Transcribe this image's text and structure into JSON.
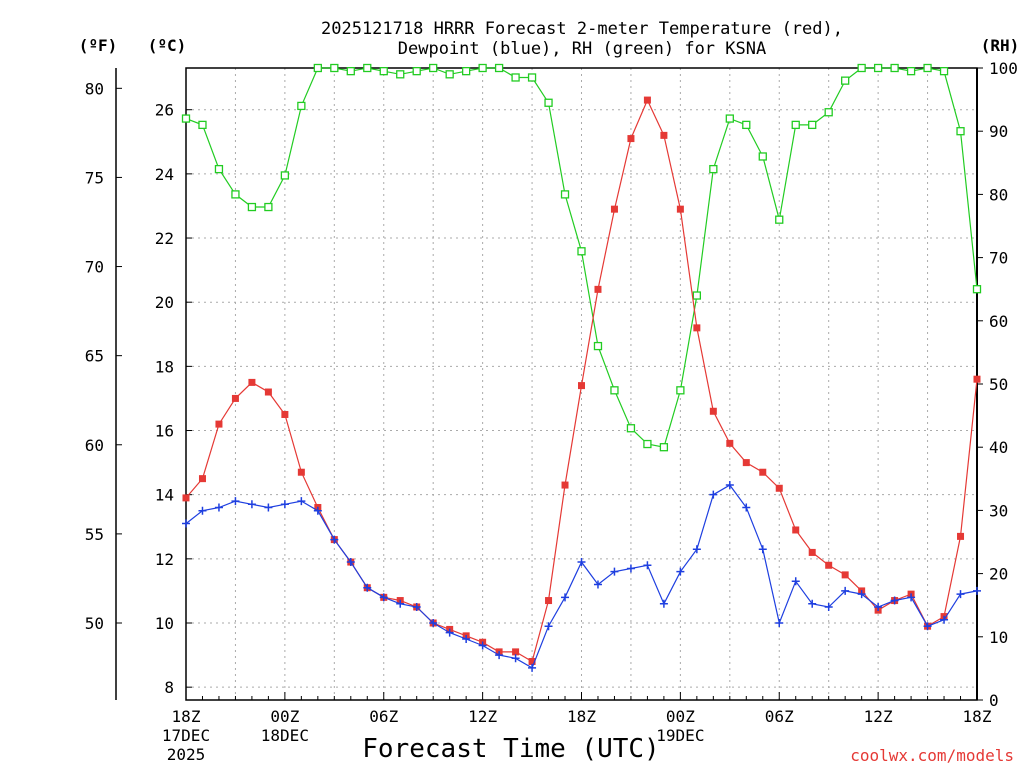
{
  "chart_data": {
    "type": "line",
    "title_line1": "2025121718 HRRR Forecast 2-meter Temperature (red),",
    "title_line2": "Dewpoint (blue), RH (green) for KSNA",
    "xlabel": "Forecast Time (UTC)",
    "credit": "coolwx.com/models",
    "left_outer_unit": "(ºF)",
    "left_inner_unit": "(ºC)",
    "right_unit": "(RH)",
    "colors": {
      "temperature": "#e53935",
      "dewpoint": "#1e3fe0",
      "rh": "#22cc22"
    },
    "ylim_c": [
      7.6,
      27.3
    ],
    "ylim_rh": [
      0,
      100
    ],
    "x_range_hours": [
      0,
      48
    ],
    "c_ticks": [
      8,
      10,
      12,
      14,
      16,
      18,
      20,
      22,
      24,
      26
    ],
    "f_ticks": [
      50,
      55,
      60,
      65,
      70,
      75,
      80
    ],
    "rh_ticks": [
      0,
      10,
      20,
      30,
      40,
      50,
      60,
      70,
      80,
      90,
      100
    ],
    "x_ticks": [
      {
        "hour": 0,
        "label": "18Z",
        "sub1": "17DEC",
        "sub2": "2025"
      },
      {
        "hour": 6,
        "label": "00Z",
        "sub1": "18DEC",
        "sub2": ""
      },
      {
        "hour": 12,
        "label": "06Z",
        "sub1": "",
        "sub2": ""
      },
      {
        "hour": 18,
        "label": "12Z",
        "sub1": "",
        "sub2": ""
      },
      {
        "hour": 24,
        "label": "18Z",
        "sub1": "",
        "sub2": ""
      },
      {
        "hour": 30,
        "label": "00Z",
        "sub1": "19DEC",
        "sub2": ""
      },
      {
        "hour": 36,
        "label": "06Z",
        "sub1": "",
        "sub2": ""
      },
      {
        "hour": 42,
        "label": "12Z",
        "sub1": "",
        "sub2": ""
      },
      {
        "hour": 48,
        "label": "18Z",
        "sub1": "",
        "sub2": ""
      }
    ],
    "series": [
      {
        "name": "Temperature (°C)",
        "values": [
          13.9,
          14.5,
          16.2,
          17.0,
          17.5,
          17.2,
          16.5,
          14.7,
          13.6,
          12.6,
          11.9,
          11.1,
          10.8,
          10.7,
          10.5,
          10.0,
          9.8,
          9.6,
          9.4,
          9.1,
          9.1,
          8.8,
          10.7,
          14.3,
          17.4,
          20.4,
          22.9,
          25.1,
          26.3,
          25.2,
          22.9,
          19.2,
          16.6,
          15.6,
          15.0,
          14.7,
          14.2,
          12.9,
          12.2,
          11.8,
          11.5,
          11.0,
          10.4,
          10.7,
          10.9,
          9.9,
          10.2,
          12.7,
          17.6
        ]
      },
      {
        "name": "Dewpoint (°C)",
        "values": [
          13.1,
          13.5,
          13.6,
          13.8,
          13.7,
          13.6,
          13.7,
          13.8,
          13.5,
          12.6,
          11.9,
          11.1,
          10.8,
          10.6,
          10.5,
          10.0,
          9.7,
          9.5,
          9.3,
          9.0,
          8.9,
          8.6,
          9.9,
          10.8,
          11.9,
          11.2,
          11.6,
          11.7,
          11.8,
          10.6,
          11.6,
          12.3,
          14.0,
          14.3,
          13.6,
          12.3,
          10.0,
          11.3,
          10.6,
          10.5,
          11.0,
          10.9,
          10.5,
          10.7,
          10.8,
          9.9,
          10.1,
          10.9,
          11.0
        ]
      },
      {
        "name": "RH (%)",
        "values": [
          92,
          91,
          84,
          80,
          78,
          78,
          83,
          94,
          100,
          100,
          99.5,
          100,
          99.5,
          99,
          99.5,
          100,
          99,
          99.5,
          100,
          100,
          98.5,
          98.5,
          94.5,
          80,
          71,
          56,
          49,
          43,
          40.5,
          40,
          49,
          64,
          84,
          92,
          91,
          86,
          76,
          91,
          91,
          93,
          98,
          100,
          100,
          100,
          99.5,
          100,
          99.5,
          90,
          65
        ]
      }
    ]
  }
}
